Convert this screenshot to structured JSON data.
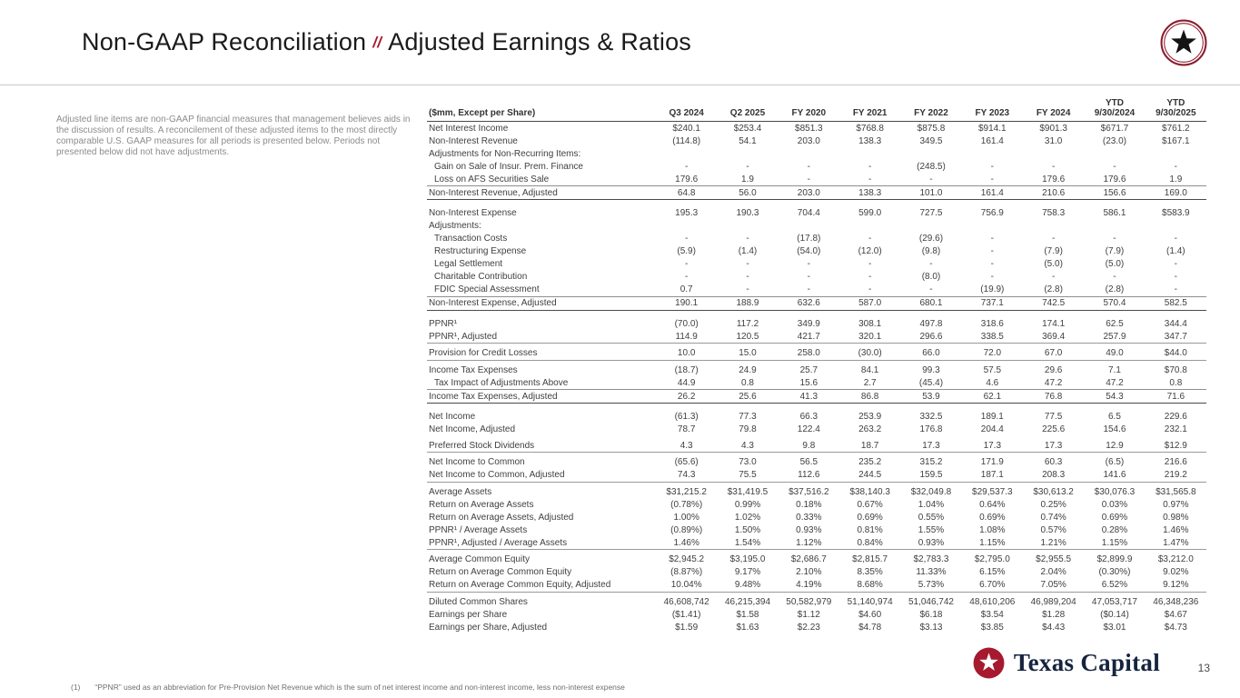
{
  "header": {
    "title_main": "Non-GAAP Reconciliation",
    "title_separator": "//",
    "title_sub": "Adjusted Earnings & Ratios"
  },
  "icons": {
    "badge": "star-in-circle",
    "brand_mark": "star-in-circle"
  },
  "colors": {
    "accent_red": "#A6192E",
    "navy": "#16243E",
    "title_text": "#1A1A1A",
    "table_text": "#404040",
    "muted_gray": "#8C8C8C"
  },
  "intro_text": "Adjusted line items are non-GAAP financial measures that management believes aids in the discussion of results. A reconcilement of these adjusted items to the most directly comparable U.S. GAAP measures for all periods is presented below. Periods not presented below did not have adjustments.",
  "table": {
    "columns": [
      "($mm, Except per Share)",
      "Q3 2024",
      "Q2 2025",
      "FY 2020",
      "FY 2021",
      "FY 2022",
      "FY 2023",
      "FY 2024",
      "YTD\n9/30/2024",
      "YTD\n9/30/2025"
    ],
    "rows": [
      {
        "label": "Net Interest Income",
        "cls": "",
        "values": [
          "$240.1",
          "$253.4",
          "$851.3",
          "$768.8",
          "$875.8",
          "$914.1",
          "$901.3",
          "$671.7",
          "$761.2"
        ]
      },
      {
        "label": "Non-Interest Revenue",
        "cls": "",
        "values": [
          "(114.8)",
          "54.1",
          "203.0",
          "138.3",
          "349.5",
          "161.4",
          "31.0",
          "(23.0)",
          "$167.1"
        ]
      },
      {
        "label": "Adjustments for Non-Recurring Items:",
        "cls": "labelrow",
        "values": []
      },
      {
        "label": "Gain on Sale of Insur. Prem. Finance",
        "cls": "indent",
        "values": [
          "-",
          "-",
          "-",
          "-",
          "(248.5)",
          "-",
          "-",
          "-",
          "-"
        ]
      },
      {
        "label": "Loss on AFS Securities Sale",
        "cls": "indent rule",
        "values": [
          "179.6",
          "1.9",
          "-",
          "-",
          "-",
          "-",
          "179.6",
          "179.6",
          "1.9"
        ]
      },
      {
        "label": "Non-Interest Revenue, Adjusted",
        "cls": "end",
        "values": [
          "64.8",
          "56.0",
          "203.0",
          "138.3",
          "101.0",
          "161.4",
          "210.6",
          "156.6",
          "169.0"
        ]
      },
      {
        "label": "Non-Interest Expense",
        "cls": "gap",
        "values": [
          "195.3",
          "190.3",
          "704.4",
          "599.0",
          "727.5",
          "756.9",
          "758.3",
          "586.1",
          "$583.9"
        ]
      },
      {
        "label": "Adjustments:",
        "cls": "labelrow",
        "values": []
      },
      {
        "label": "Transaction Costs",
        "cls": "indent",
        "values": [
          "-",
          "-",
          "(17.8)",
          "-",
          "(29.6)",
          "-",
          "-",
          "-",
          "-"
        ]
      },
      {
        "label": "Restructuring Expense",
        "cls": "indent",
        "values": [
          "(5.9)",
          "(1.4)",
          "(54.0)",
          "(12.0)",
          "(9.8)",
          "-",
          "(7.9)",
          "(7.9)",
          "(1.4)"
        ]
      },
      {
        "label": "Legal Settlement",
        "cls": "indent",
        "values": [
          "-",
          "-",
          "-",
          "-",
          "-",
          "-",
          "(5.0)",
          "(5.0)",
          "-"
        ]
      },
      {
        "label": "Charitable Contribution",
        "cls": "indent",
        "values": [
          "-",
          "-",
          "-",
          "-",
          "(8.0)",
          "-",
          "-",
          "-",
          "-"
        ]
      },
      {
        "label": "FDIC Special Assessment",
        "cls": "indent rule",
        "values": [
          "0.7",
          "-",
          "-",
          "-",
          "-",
          "(19.9)",
          "(2.8)",
          "(2.8)",
          "-"
        ]
      },
      {
        "label": "Non-Interest Expense, Adjusted",
        "cls": "end",
        "values": [
          "190.1",
          "188.9",
          "632.6",
          "587.0",
          "680.1",
          "737.1",
          "742.5",
          "570.4",
          "582.5"
        ]
      },
      {
        "label": "PPNR¹",
        "cls": "gap",
        "values": [
          "(70.0)",
          "117.2",
          "349.9",
          "308.1",
          "497.8",
          "318.6",
          "174.1",
          "62.5",
          "344.4"
        ]
      },
      {
        "label": "PPNR¹, Adjusted",
        "cls": "end2",
        "values": [
          "114.9",
          "120.5",
          "421.7",
          "320.1",
          "296.6",
          "338.5",
          "369.4",
          "257.9",
          "347.7"
        ]
      },
      {
        "label": "Provision for Credit Losses",
        "cls": "gap2 end2",
        "values": [
          "10.0",
          "15.0",
          "258.0",
          "(30.0)",
          "66.0",
          "72.0",
          "67.0",
          "49.0",
          "$44.0"
        ]
      },
      {
        "label": "Income Tax Expenses",
        "cls": "gap2",
        "values": [
          "(18.7)",
          "24.9",
          "25.7",
          "84.1",
          "99.3",
          "57.5",
          "29.6",
          "7.1",
          "$70.8"
        ]
      },
      {
        "label": "Tax Impact of Adjustments Above",
        "cls": "indent rule",
        "values": [
          "44.9",
          "0.8",
          "15.6",
          "2.7",
          "(45.4)",
          "4.6",
          "47.2",
          "47.2",
          "0.8"
        ]
      },
      {
        "label": "Income Tax Expenses, Adjusted",
        "cls": "end",
        "values": [
          "26.2",
          "25.6",
          "41.3",
          "86.8",
          "53.9",
          "62.1",
          "76.8",
          "54.3",
          "71.6"
        ]
      },
      {
        "label": "Net Income",
        "cls": "gap",
        "values": [
          "(61.3)",
          "77.3",
          "66.3",
          "253.9",
          "332.5",
          "189.1",
          "77.5",
          "6.5",
          "229.6"
        ]
      },
      {
        "label": "Net Income, Adjusted",
        "cls": "",
        "values": [
          "78.7",
          "79.8",
          "122.4",
          "263.2",
          "176.8",
          "204.4",
          "225.6",
          "154.6",
          "232.1"
        ]
      },
      {
        "label": "Preferred Stock Dividends",
        "cls": "gap2 end2",
        "values": [
          "4.3",
          "4.3",
          "9.8",
          "18.7",
          "17.3",
          "17.3",
          "17.3",
          "12.9",
          "$12.9"
        ]
      },
      {
        "label": "Net Income to Common",
        "cls": "gap2",
        "values": [
          "(65.6)",
          "73.0",
          "56.5",
          "235.2",
          "315.2",
          "171.9",
          "60.3",
          "(6.5)",
          "216.6"
        ]
      },
      {
        "label": "Net Income to Common, Adjusted",
        "cls": "end2",
        "values": [
          "74.3",
          "75.5",
          "112.6",
          "244.5",
          "159.5",
          "187.1",
          "208.3",
          "141.6",
          "219.2"
        ]
      },
      {
        "label": "Average Assets",
        "cls": "gap2",
        "values": [
          "$31,215.2",
          "$31,419.5",
          "$37,516.2",
          "$38,140.3",
          "$32,049.8",
          "$29,537.3",
          "$30,613.2",
          "$30,076.3",
          "$31,565.8"
        ]
      },
      {
        "label": "Return on Average Assets",
        "cls": "",
        "values": [
          "(0.78%)",
          "0.99%",
          "0.18%",
          "0.67%",
          "1.04%",
          "0.64%",
          "0.25%",
          "0.03%",
          "0.97%"
        ]
      },
      {
        "label": "Return on Average Assets, Adjusted",
        "cls": "",
        "values": [
          "1.00%",
          "1.02%",
          "0.33%",
          "0.69%",
          "0.55%",
          "0.69%",
          "0.74%",
          "0.69%",
          "0.98%"
        ]
      },
      {
        "label": "PPNR¹ / Average Assets",
        "cls": "",
        "values": [
          "(0.89%)",
          "1.50%",
          "0.93%",
          "0.81%",
          "1.55%",
          "1.08%",
          "0.57%",
          "0.28%",
          "1.46%"
        ]
      },
      {
        "label": "PPNR¹, Adjusted / Average Assets",
        "cls": "end2",
        "values": [
          "1.46%",
          "1.54%",
          "1.12%",
          "0.84%",
          "0.93%",
          "1.15%",
          "1.21%",
          "1.15%",
          "1.47%"
        ]
      },
      {
        "label": "Average Common Equity",
        "cls": "gap2",
        "values": [
          "$2,945.2",
          "$3,195.0",
          "$2,686.7",
          "$2,815.7",
          "$2,783.3",
          "$2,795.0",
          "$2,955.5",
          "$2,899.9",
          "$3,212.0"
        ]
      },
      {
        "label": "Return on Average Common Equity",
        "cls": "",
        "values": [
          "(8.87%)",
          "9.17%",
          "2.10%",
          "8.35%",
          "11.33%",
          "6.15%",
          "2.04%",
          "(0.30%)",
          "9.02%"
        ]
      },
      {
        "label": "Return on Average Common Equity, Adjusted",
        "cls": "end2",
        "values": [
          "10.04%",
          "9.48%",
          "4.19%",
          "8.68%",
          "5.73%",
          "6.70%",
          "7.05%",
          "6.52%",
          "9.12%"
        ]
      },
      {
        "label": "Diluted Common Shares",
        "cls": "gap2",
        "values": [
          "46,608,742",
          "46,215,394",
          "50,582,979",
          "51,140,974",
          "51,046,742",
          "48,610,206",
          "46,989,204",
          "47,053,717",
          "46,348,236"
        ]
      },
      {
        "label": "Earnings per Share",
        "cls": "",
        "values": [
          "($1.41)",
          "$1.58",
          "$1.12",
          "$4.60",
          "$6.18",
          "$3.54",
          "$1.28",
          "($0.14)",
          "$4.67"
        ]
      },
      {
        "label": "Earnings per Share, Adjusted",
        "cls": "",
        "values": [
          "$1.59",
          "$1.63",
          "$2.23",
          "$4.78",
          "$3.13",
          "$3.85",
          "$4.43",
          "$3.01",
          "$4.73"
        ]
      }
    ]
  },
  "footnote": {
    "marker": "(1)",
    "text": "“PPNR” used as an abbreviation for Pre-Provision Net Revenue which is the sum of net interest income and non-interest income, less non-interest expense"
  },
  "brand": {
    "wordmark": "Texas Capital"
  },
  "page_number": "13"
}
